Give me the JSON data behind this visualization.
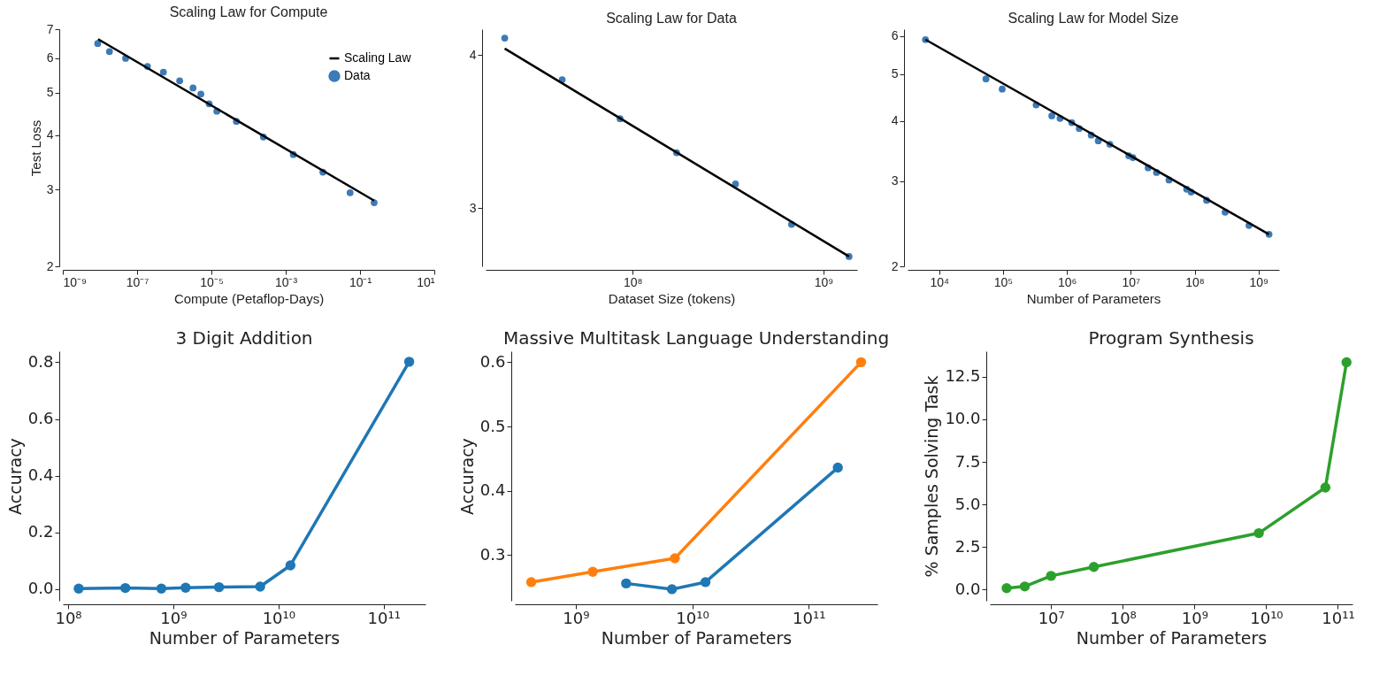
{
  "chart_data": [
    {
      "type": "scatter",
      "title": "Scaling Law for Compute",
      "xlabel": "Compute (Petaflop-Days)",
      "ylabel": "Test Loss",
      "log": "xy",
      "legend": "top right",
      "xlim": [
        1e-09,
        10
      ],
      "ylim": [
        2,
        7
      ],
      "xticks": [
        {
          "value": 1e-09,
          "label": "10⁻⁹"
        },
        {
          "value": 1e-07,
          "label": "10⁻⁷"
        },
        {
          "value": 1e-05,
          "label": "10⁻⁵"
        },
        {
          "value": 0.001,
          "label": "10⁻³"
        },
        {
          "value": 0.1,
          "label": "10⁻¹"
        },
        {
          "value": 10,
          "label": "10¹"
        }
      ],
      "yticks": [
        2,
        3,
        4,
        5,
        6,
        7
      ],
      "series": [
        {
          "name": "Scaling Law",
          "type": "line",
          "color": "#000000",
          "x": [
            8.9e-09,
            0.24
          ],
          "values": [
            6.64,
            2.83
          ]
        },
        {
          "name": "Data",
          "type": "scatter",
          "color": "#3d7ab8",
          "x": [
            8.7e-09,
            1.8e-08,
            4.9e-08,
            1.9e-07,
            5.1e-07,
            1.4e-06,
            3.2e-06,
            5.2e-06,
            8.7e-06,
            1.4e-05,
            4.7e-05,
            0.00025,
            0.0016,
            0.01,
            0.054,
            0.24
          ],
          "values": [
            6.49,
            6.22,
            6.0,
            5.75,
            5.58,
            5.33,
            5.13,
            4.97,
            4.72,
            4.54,
            4.3,
            3.96,
            3.61,
            3.29,
            2.95,
            2.8
          ]
        }
      ]
    },
    {
      "type": "scatter",
      "title": "Scaling Law for Data",
      "xlabel": "Dataset Size (tokens)",
      "log": "xy",
      "xlim": [
        17000000.0,
        1500000000.0
      ],
      "ylim": [
        2.69,
        4.2
      ],
      "xticks": [
        {
          "value": 100000000.0,
          "label": "10⁸"
        },
        {
          "value": 1000000000.0,
          "label": "10⁹"
        }
      ],
      "yticks": [
        3,
        4
      ],
      "series": [
        {
          "type": "line",
          "color": "#000000",
          "x": [
            21400000.0,
            1360000000.0
          ],
          "values": [
            4.05,
            2.74
          ]
        },
        {
          "type": "scatter",
          "color": "#3d7ab8",
          "x": [
            21400000.0,
            42800000.0,
            86000000.0,
            170000000.0,
            346000000.0,
            680000000.0,
            1360000000.0
          ],
          "values": [
            4.13,
            3.82,
            3.55,
            3.33,
            3.14,
            2.91,
            2.74
          ]
        }
      ]
    },
    {
      "type": "scatter",
      "title": "Scaling Law for Model Size",
      "xlabel": "Number of Parameters",
      "log": "xy",
      "xlim": [
        3200.0,
        2100000000.0
      ],
      "ylim": [
        2,
        6.2
      ],
      "xticks": [
        {
          "value": 10000.0,
          "label": "10⁴"
        },
        {
          "value": 100000.0,
          "label": "10⁵"
        },
        {
          "value": 1000000.0,
          "label": "10⁶"
        },
        {
          "value": 10000000.0,
          "label": "10⁷"
        },
        {
          "value": 100000000.0,
          "label": "10⁸"
        },
        {
          "value": 1000000000.0,
          "label": "10⁹"
        }
      ],
      "yticks": [
        2,
        3,
        4,
        5,
        6
      ],
      "series": [
        {
          "type": "line",
          "color": "#000000",
          "x": [
            6100.0,
            1460000000.0
          ],
          "values": [
            5.9,
            2.33
          ]
        },
        {
          "type": "scatter",
          "color": "#3d7ab8",
          "x": [
            6100.0,
            54000.0,
            97000.0,
            330000.0,
            580000.0,
            780000.0,
            1190000.0,
            1560000.0,
            2400000.0,
            3100000.0,
            4700000.0,
            9300000.0,
            10800000.0,
            18700000.0,
            25300000.0,
            39700000.0,
            75000000.0,
            88000000.0,
            154000000.0,
            300000000.0,
            710000000.0,
            1460000000.0
          ],
          "values": [
            5.9,
            4.89,
            4.66,
            4.32,
            4.1,
            4.05,
            3.97,
            3.86,
            3.74,
            3.64,
            3.58,
            3.39,
            3.36,
            3.2,
            3.13,
            3.02,
            2.89,
            2.85,
            2.74,
            2.59,
            2.43,
            2.33
          ]
        }
      ]
    },
    {
      "type": "line",
      "title": "3 Digit Addition",
      "xlabel": "Number of Parameters",
      "ylabel": "Accuracy",
      "log": "x",
      "marker": "circle",
      "xlim": [
        89000000.0,
        250000000000.0
      ],
      "ylim": [
        -0.041,
        0.839
      ],
      "xticks": [
        {
          "value": 100000000.0,
          "label": "10⁸"
        },
        {
          "value": 1000000000.0,
          "label": "10⁹"
        },
        {
          "value": 10000000000.0,
          "label": "10¹⁰"
        },
        {
          "value": 100000000000.0,
          "label": "10¹¹"
        }
      ],
      "yticks": [
        {
          "value": 0,
          "label": "0.0"
        },
        {
          "value": 0.2,
          "label": "0.2"
        },
        {
          "value": 0.4,
          "label": "0.4"
        },
        {
          "value": 0.6,
          "label": "0.6"
        },
        {
          "value": 0.8,
          "label": "0.8"
        }
      ],
      "series": [
        {
          "color": "#1f77b4",
          "x": [
            126000000.0,
            350000000.0,
            770000000.0,
            1310000000.0,
            2720000000.0,
            6700000000.0,
            13000000000.0,
            175000000000.0
          ],
          "values": [
            0.002,
            0.004,
            0.002,
            0.005,
            0.007,
            0.009,
            0.084,
            0.802
          ]
        }
      ]
    },
    {
      "type": "line",
      "title": "Massive Multitask Language Understanding",
      "xlabel": "Number of Parameters",
      "ylabel": "Accuracy",
      "log": "x",
      "marker": "circle",
      "xlim": [
        300000000.0,
        390000000000.0
      ],
      "ylim": [
        0.229,
        0.617
      ],
      "xticks": [
        {
          "value": 1000000000.0,
          "label": "10⁹"
        },
        {
          "value": 10000000000.0,
          "label": "10¹⁰"
        },
        {
          "value": 100000000000.0,
          "label": "10¹¹"
        }
      ],
      "yticks": [
        0.3,
        0.4,
        0.5,
        0.6
      ],
      "series": [
        {
          "color": "#ff7f0e",
          "x": [
            415000000.0,
            1400000000.0,
            7100000000.0,
            282000000000.0
          ],
          "values": [
            0.258,
            0.274,
            0.295,
            0.6
          ]
        },
        {
          "color": "#1f77b4",
          "x": [
            2710000000.0,
            6700000000.0,
            13000000000.0,
            178000000000.0
          ],
          "values": [
            0.256,
            0.247,
            0.258,
            0.436
          ]
        }
      ]
    },
    {
      "type": "line",
      "title": "Program Synthesis",
      "xlabel": "Number of Parameters",
      "ylabel": "% Samples Solving Task",
      "log": "x",
      "marker": "circle",
      "xlim": [
        1400000.0,
        160000000000.0
      ],
      "ylim": [
        -0.65,
        14.0
      ],
      "xticks": [
        {
          "value": 10000000.0,
          "label": "10⁷"
        },
        {
          "value": 100000000.0,
          "label": "10⁸"
        },
        {
          "value": 1000000000.0,
          "label": "10⁹"
        },
        {
          "value": 10000000000.0,
          "label": "10¹⁰"
        },
        {
          "value": 100000000000.0,
          "label": "10¹¹"
        }
      ],
      "yticks": [
        {
          "value": 0,
          "label": "0.0"
        },
        {
          "value": 2.5,
          "label": "2.5"
        },
        {
          "value": 5,
          "label": "5.0"
        },
        {
          "value": 7.5,
          "label": "7.5"
        },
        {
          "value": 10,
          "label": "10.0"
        },
        {
          "value": 12.5,
          "label": "12.5"
        }
      ],
      "series": [
        {
          "color": "#2ca02c",
          "x": [
            2400000.0,
            4300000.0,
            10000000.0,
            39500000.0,
            7900000000.0,
            67000000000.0,
            132000000000.0
          ],
          "values": [
            0.09,
            0.19,
            0.81,
            1.34,
            3.32,
            6.0,
            13.35
          ]
        }
      ]
    }
  ]
}
